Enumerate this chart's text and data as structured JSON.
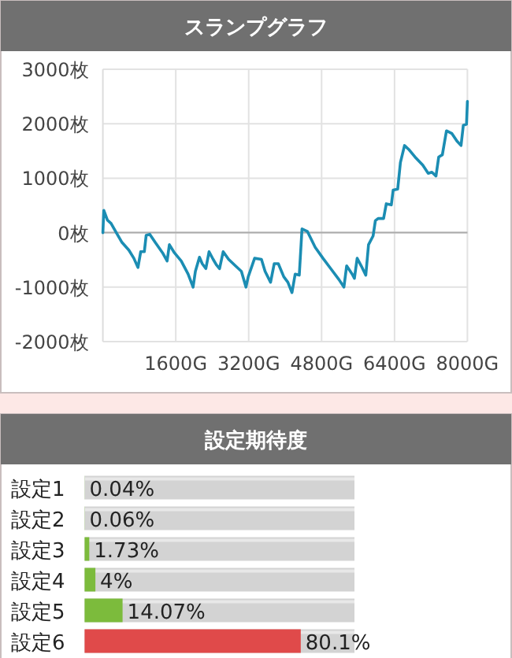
{
  "chart_data": [
    {
      "type": "line",
      "title": "スランプグラフ",
      "xlim": [
        0,
        8000
      ],
      "ylim": [
        -2000,
        3000
      ],
      "xticks": [
        {
          "value": 1600,
          "label": "1600G"
        },
        {
          "value": 3200,
          "label": "3200G"
        },
        {
          "value": 4800,
          "label": "4800G"
        },
        {
          "value": 6400,
          "label": "6400G"
        },
        {
          "value": 8000,
          "label": "8000G"
        }
      ],
      "yticks": [
        {
          "value": -2000,
          "label": "-2000枚"
        },
        {
          "value": -1000,
          "label": "-1000枚"
        },
        {
          "value": 0,
          "label": "0枚"
        },
        {
          "value": 1000,
          "label": "1000枚"
        },
        {
          "value": 2000,
          "label": "2000枚"
        },
        {
          "value": 3000,
          "label": "3000枚"
        }
      ],
      "grid": true,
      "ref_lines": [
        {
          "axis": "y",
          "value": 0,
          "color": "#aaaaaa"
        }
      ],
      "series": [
        {
          "color": "#1b8db3",
          "x": [
            0,
            20,
            100,
            180,
            280,
            420,
            570,
            680,
            770,
            830,
            910,
            950,
            1030,
            1150,
            1310,
            1410,
            1460,
            1570,
            1720,
            1870,
            1980,
            2030,
            2120,
            2180,
            2260,
            2330,
            2420,
            2490,
            2560,
            2640,
            2760,
            2910,
            3040,
            3140,
            3190,
            3330,
            3480,
            3560,
            3680,
            3760,
            3850,
            3970,
            4060,
            4150,
            4220,
            4310,
            4370,
            4490,
            4660,
            4830,
            5000,
            5180,
            5290,
            5350,
            5470,
            5520,
            5580,
            5670,
            5770,
            5830,
            5930,
            5980,
            6040,
            6160,
            6220,
            6330,
            6370,
            6470,
            6530,
            6620,
            6710,
            6850,
            7020,
            7140,
            7220,
            7310,
            7370,
            7450,
            7540,
            7660,
            7770,
            7860,
            7910,
            7980,
            8000
          ],
          "values": [
            0,
            410,
            230,
            170,
            20,
            -180,
            -320,
            -470,
            -640,
            -350,
            -350,
            -50,
            -30,
            -180,
            -370,
            -520,
            -220,
            -370,
            -520,
            -760,
            -1000,
            -710,
            -450,
            -570,
            -660,
            -350,
            -490,
            -590,
            -660,
            -350,
            -490,
            -610,
            -710,
            -1000,
            -810,
            -470,
            -490,
            -710,
            -910,
            -570,
            -570,
            -810,
            -910,
            -1100,
            -760,
            -780,
            70,
            20,
            -270,
            -470,
            -660,
            -860,
            -1000,
            -610,
            -760,
            -840,
            -470,
            -610,
            -780,
            -220,
            -60,
            220,
            260,
            260,
            530,
            510,
            780,
            800,
            1290,
            1600,
            1530,
            1390,
            1240,
            1090,
            1110,
            1040,
            1390,
            1430,
            1870,
            1820,
            1680,
            1600,
            1970,
            1990,
            2410
          ]
        }
      ]
    },
    {
      "type": "bar",
      "title": "設定期待度",
      "orientation": "horizontal",
      "categories": [
        "設定1",
        "設定2",
        "設定3",
        "設定4",
        "設定5",
        "設定6"
      ],
      "values": [
        0.04,
        0.06,
        1.73,
        4,
        14.07,
        80.1
      ],
      "colors": [
        "#7cbb3c",
        "#7cbb3c",
        "#7cbb3c",
        "#7cbb3c",
        "#7cbb3c",
        "#e04a4a"
      ],
      "value_labels": [
        "0.04%",
        "0.06%",
        "1.73%",
        "4%",
        "14.07%",
        "80.1%"
      ],
      "tick_labels": "y"
    }
  ]
}
